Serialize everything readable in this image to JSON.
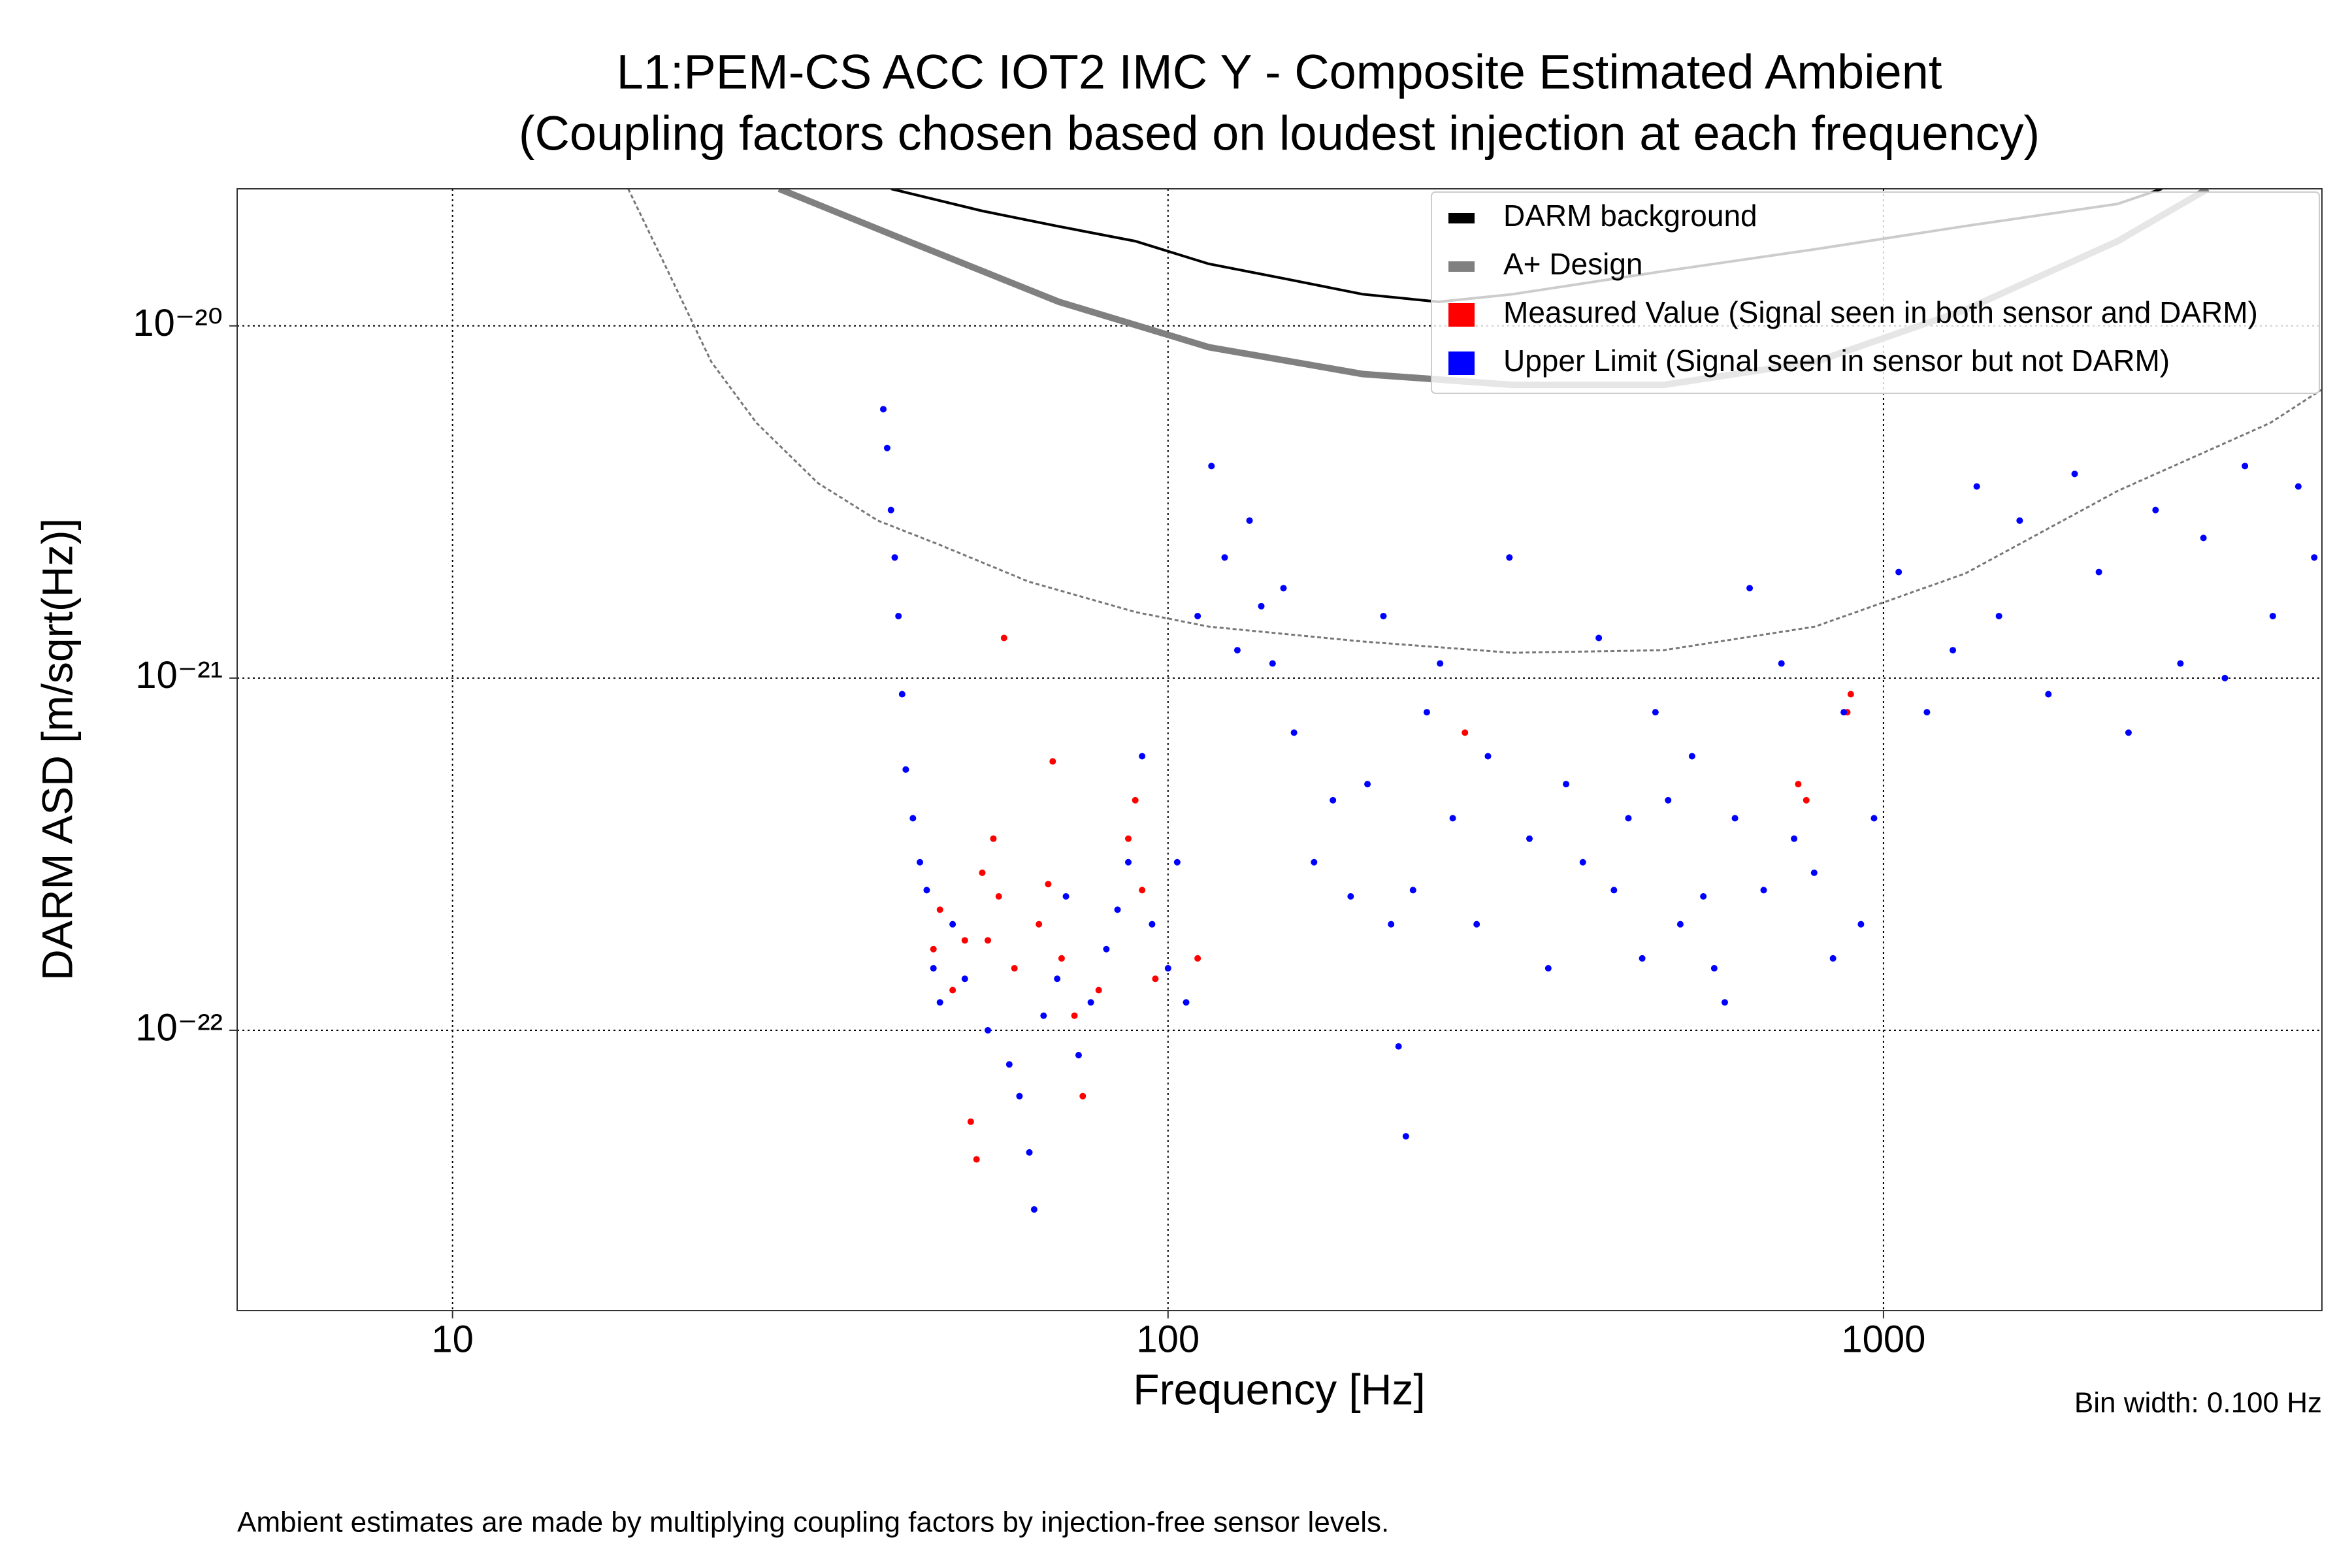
{
  "chart_data": {
    "type": "scatter",
    "title": "L1:PEM-CS ACC IOT2 IMC Y - Composite Estimated Ambient",
    "subtitle": "(Coupling factors chosen based on loudest injection at each frequency)",
    "x_label": "Frequency [Hz]",
    "y_label": "DARM ASD [m/sqrt(Hz)]",
    "annotation": "Bin width: 0.100 Hz",
    "footnote": "Ambient estimates are made by multiplying coupling factors by injection-free sensor levels.",
    "xscale": "log",
    "yscale": "log",
    "grid": true,
    "legend": "upper right",
    "xlim": [
      5,
      4100
    ],
    "ylim": [
      1.6e-23,
      2.45e-20
    ],
    "xticks": [
      10,
      100,
      1000
    ],
    "yticks": [
      {
        "value": 1e-20,
        "label": "10⁻²⁰"
      },
      {
        "value": 1e-21,
        "label": "10⁻²¹"
      },
      {
        "value": 1e-22,
        "label": "10⁻²²"
      }
    ],
    "series": [
      {
        "name": "DARM background",
        "color": "#000000",
        "type": "line",
        "x": [
          41,
          55,
          70,
          90,
          114,
          146,
          187,
          239,
          303,
          493,
          802,
          1300,
          2125,
          2450
        ],
        "values": [
          2.45e-20,
          2.12e-20,
          1.92e-20,
          1.74e-20,
          1.5e-20,
          1.36e-20,
          1.23e-20,
          1.17e-20,
          1.23e-20,
          1.43e-20,
          1.65e-20,
          1.92e-20,
          2.22e-20,
          2.45e-20
        ]
      },
      {
        "name": "A+ Design",
        "color": "#808080",
        "type": "line",
        "x": [
          28.6,
          43.3,
          70.4,
          114,
          187,
          303,
          493,
          802,
          1300,
          2125,
          2840
        ],
        "values": [
          2.45e-20,
          1.74e-20,
          1.17e-20,
          8.7e-21,
          7.3e-21,
          6.8e-21,
          6.8e-21,
          7.9e-21,
          1.11e-20,
          1.74e-20,
          2.45e-20
        ]
      },
      {
        "name": "Measured Value (Signal seen in both sensor and DARM)",
        "color": "#ff0000",
        "type": "scatter",
        "x": [
          47,
          48,
          50,
          52,
          53,
          54,
          55,
          56,
          57,
          58,
          59,
          61,
          66,
          68,
          69,
          71,
          74,
          76,
          80,
          88,
          90,
          92,
          96,
          110,
          260,
          760,
          780,
          890,
          900
        ],
        "values": [
          1.7e-22,
          2.2e-22,
          1.3e-22,
          1.8e-22,
          5.5e-23,
          4.3e-23,
          2.8e-22,
          1.8e-22,
          3.5e-22,
          2.4e-22,
          1.3e-21,
          1.5e-22,
          2e-22,
          2.6e-22,
          5.8e-22,
          1.6e-22,
          1.1e-22,
          6.5e-23,
          1.3e-22,
          3.5e-22,
          4.5e-22,
          2.5e-22,
          1.4e-22,
          1.6e-22,
          7e-22,
          5e-22,
          4.5e-22,
          8e-22,
          9e-22
        ]
      },
      {
        "name": "Upper Limit (Signal seen in sensor but not DARM)",
        "color": "#0000ff",
        "type": "scatter",
        "x": [
          40,
          40.5,
          41,
          41.5,
          42,
          42.5,
          43,
          44,
          45,
          46,
          47,
          48,
          50,
          52,
          56,
          60,
          62,
          64,
          65,
          67,
          70,
          72,
          75,
          78,
          82,
          85,
          88,
          92,
          95,
          100,
          103,
          106,
          110,
          115,
          120,
          125,
          130,
          135,
          140,
          145,
          150,
          160,
          170,
          180,
          190,
          200,
          205,
          210,
          215,
          220,
          230,
          240,
          250,
          270,
          280,
          300,
          320,
          340,
          360,
          380,
          400,
          420,
          440,
          460,
          480,
          500,
          520,
          540,
          560,
          580,
          600,
          620,
          650,
          680,
          720,
          750,
          800,
          850,
          880,
          930,
          970,
          1050,
          1150,
          1250,
          1350,
          1450,
          1550,
          1700,
          1850,
          2000,
          2200,
          2400,
          2600,
          2800,
          3000,
          3200,
          3500,
          3800,
          4000
        ],
        "values": [
          5.8e-21,
          4.5e-21,
          3e-21,
          2.2e-21,
          1.5e-21,
          9e-22,
          5.5e-22,
          4e-22,
          3e-22,
          2.5e-22,
          1.5e-22,
          1.2e-22,
          2e-22,
          1.4e-22,
          1e-22,
          8e-23,
          6.5e-23,
          4.5e-23,
          3.1e-23,
          1.1e-22,
          1.4e-22,
          2.4e-22,
          8.5e-23,
          1.2e-22,
          1.7e-22,
          2.2e-22,
          3e-22,
          6e-22,
          2e-22,
          1.5e-22,
          3e-22,
          1.2e-22,
          1.5e-21,
          4e-21,
          2.2e-21,
          1.2e-21,
          2.8e-21,
          1.6e-21,
          1.1e-21,
          1.8e-21,
          7e-22,
          3e-22,
          4.5e-22,
          2.4e-22,
          5e-22,
          1.5e-21,
          2e-22,
          9e-23,
          5e-23,
          2.5e-22,
          8e-22,
          1.1e-21,
          4e-22,
          2e-22,
          6e-22,
          2.2e-21,
          3.5e-22,
          1.5e-22,
          5e-22,
          3e-22,
          1.3e-21,
          2.5e-22,
          4e-22,
          1.6e-22,
          8e-22,
          4.5e-22,
          2e-22,
          6e-22,
          2.4e-22,
          1.5e-22,
          1.2e-22,
          4e-22,
          1.8e-21,
          2.5e-22,
          1.1e-21,
          3.5e-22,
          2.8e-22,
          1.6e-22,
          8e-22,
          2e-22,
          4e-22,
          2e-21,
          8e-22,
          1.2e-21,
          3.5e-21,
          1.5e-21,
          2.8e-21,
          9e-22,
          3.8e-21,
          2e-21,
          7e-22,
          3e-21,
          1.1e-21,
          2.5e-21,
          1e-21,
          4e-21,
          1.5e-21,
          3.5e-21,
          2.2e-21
        ]
      },
      {
        "color": "#777777",
        "type": "line",
        "style": "dotted",
        "x": [
          17.6,
          20,
          23,
          26.6,
          32.4,
          39.3,
          47.7,
          63.8,
          90,
          114,
          187,
          303,
          493,
          802,
          1300,
          2125,
          3470,
          4100
        ],
        "values": [
          2.45e-20,
          1.43e-20,
          7.9e-21,
          5.3e-21,
          3.58e-21,
          2.8e-21,
          2.4e-21,
          1.88e-21,
          1.54e-21,
          1.4e-21,
          1.27e-21,
          1.18e-21,
          1.2e-21,
          1.4e-21,
          1.98e-21,
          3.4e-21,
          5.3e-21,
          6.6e-21
        ]
      }
    ]
  }
}
